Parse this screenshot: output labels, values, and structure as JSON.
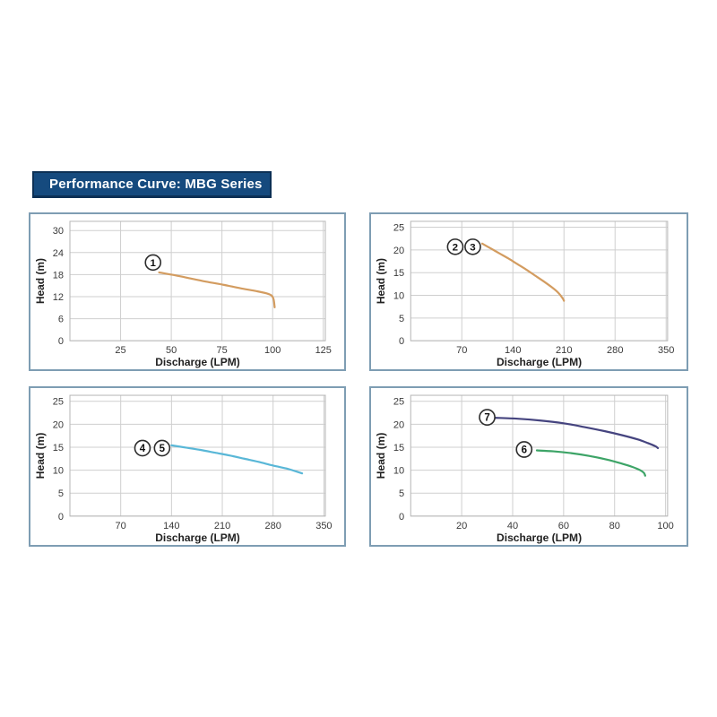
{
  "header": {
    "title": "Performance Curve: MBG Series",
    "bg_color": "#154a7e",
    "border_color": "#0c3055",
    "text_color": "#ffffff"
  },
  "chart_style": {
    "panel_border": "#7e9db3",
    "grid_color": "#cfcfcf",
    "box_color": "#b6b6b6",
    "tick_color": "#3a3a3a",
    "axis_label_color": "#222222",
    "annotation_ring": "#2d2d2d",
    "annotation_fill": "#ffffff",
    "annotation_text": "#111111",
    "curve_width": 2.2
  },
  "chart_data": [
    {
      "id": "top-left",
      "type": "line",
      "xlabel": "Discharge (LPM)",
      "ylabel": "Head (m)",
      "xlim": [
        0,
        126
      ],
      "ylim": [
        0,
        32.5
      ],
      "xticks": [
        25,
        50,
        75,
        100,
        125
      ],
      "yticks": [
        0,
        6,
        12,
        18,
        24,
        30
      ],
      "grid": true,
      "legend_position": "none",
      "series": [
        {
          "name": "curve-1",
          "color": "#d39c60",
          "points": [
            [
              44,
              18.6
            ],
            [
              52,
              17.8
            ],
            [
              60,
              16.9
            ],
            [
              68,
              16.0
            ],
            [
              76,
              15.2
            ],
            [
              84,
              14.3
            ],
            [
              92,
              13.5
            ],
            [
              97,
              12.9
            ],
            [
              99.5,
              12.3
            ],
            [
              100.5,
              11.2
            ],
            [
              101,
              9.1
            ]
          ]
        }
      ],
      "annotations": [
        {
          "label": "1",
          "x": 41,
          "y": 21.3
        }
      ]
    },
    {
      "id": "top-right",
      "type": "line",
      "xlabel": "Discharge (LPM)",
      "ylabel": "Head (m)",
      "xlim": [
        0,
        352
      ],
      "ylim": [
        0,
        26.3
      ],
      "xticks": [
        70,
        140,
        210,
        280,
        350
      ],
      "yticks": [
        0,
        5,
        10,
        15,
        20,
        25
      ],
      "grid": true,
      "legend_position": "none",
      "series": [
        {
          "name": "curve-2-3",
          "color": "#d39c60",
          "points": [
            [
              98,
              21.4
            ],
            [
              110,
              20.3
            ],
            [
              122,
              19.2
            ],
            [
              134,
              18.1
            ],
            [
              146,
              16.9
            ],
            [
              158,
              15.7
            ],
            [
              170,
              14.4
            ],
            [
              182,
              13.1
            ],
            [
              194,
              11.7
            ],
            [
              202,
              10.6
            ],
            [
              208,
              9.4
            ],
            [
              210,
              8.8
            ]
          ]
        }
      ],
      "annotations": [
        {
          "label": "2",
          "x": 61,
          "y": 20.7
        },
        {
          "label": "3",
          "x": 85,
          "y": 20.7
        }
      ]
    },
    {
      "id": "bottom-left",
      "type": "line",
      "xlabel": "Discharge (LPM)",
      "ylabel": "Head (m)",
      "xlim": [
        0,
        352
      ],
      "ylim": [
        0,
        26.3
      ],
      "xticks": [
        70,
        140,
        210,
        280,
        350
      ],
      "yticks": [
        0,
        5,
        10,
        15,
        20,
        25
      ],
      "grid": true,
      "legend_position": "none",
      "series": [
        {
          "name": "curve-4-5",
          "color": "#59b7d7",
          "points": [
            [
              140,
              15.4
            ],
            [
              160,
              14.9
            ],
            [
              180,
              14.4
            ],
            [
              200,
              13.8
            ],
            [
              220,
              13.2
            ],
            [
              240,
              12.5
            ],
            [
              260,
              11.8
            ],
            [
              280,
              11.0
            ],
            [
              300,
              10.3
            ],
            [
              312,
              9.7
            ],
            [
              320,
              9.3
            ]
          ]
        }
      ],
      "annotations": [
        {
          "label": "4",
          "x": 100,
          "y": 14.8
        },
        {
          "label": "5",
          "x": 127,
          "y": 14.8
        }
      ]
    },
    {
      "id": "bottom-right",
      "type": "line",
      "xlabel": "Discharge (LPM)",
      "ylabel": "Head (m)",
      "xlim": [
        0,
        100.8
      ],
      "ylim": [
        0,
        26.3
      ],
      "xticks": [
        20,
        40,
        60,
        80,
        100
      ],
      "yticks": [
        0,
        5,
        10,
        15,
        20,
        25
      ],
      "grid": true,
      "legend_position": "none",
      "series": [
        {
          "name": "curve-7",
          "color": "#45447f",
          "points": [
            [
              33,
              21.4
            ],
            [
              42,
              21.2
            ],
            [
              51,
              20.8
            ],
            [
              60,
              20.2
            ],
            [
              68,
              19.4
            ],
            [
              76,
              18.5
            ],
            [
              83,
              17.6
            ],
            [
              89,
              16.7
            ],
            [
              93,
              15.9
            ],
            [
              96,
              15.2
            ],
            [
              97,
              14.8
            ]
          ]
        },
        {
          "name": "curve-6",
          "color": "#3da467",
          "points": [
            [
              49.5,
              14.3
            ],
            [
              56,
              14.1
            ],
            [
              63,
              13.7
            ],
            [
              70,
              13.1
            ],
            [
              77,
              12.3
            ],
            [
              83,
              11.4
            ],
            [
              87,
              10.7
            ],
            [
              90,
              10.0
            ],
            [
              91.5,
              9.4
            ],
            [
              92,
              8.8
            ]
          ]
        }
      ],
      "annotations": [
        {
          "label": "7",
          "x": 30,
          "y": 21.5
        },
        {
          "label": "6",
          "x": 44.5,
          "y": 14.5
        }
      ]
    }
  ]
}
